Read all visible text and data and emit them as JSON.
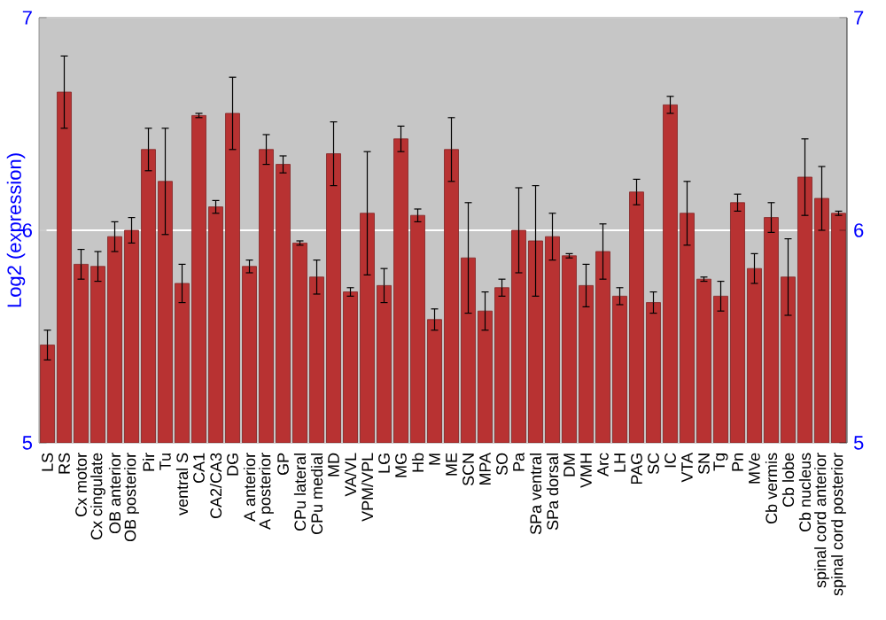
{
  "chart_data": {
    "type": "bar",
    "ylabel": "Log2 (expression)",
    "categories": [
      "LS",
      "RS",
      "Cx motor",
      "Cx cingulate",
      "OB anterior",
      "OB posterior",
      "Pir",
      "Tu",
      "ventral S",
      "CA1",
      "CA2/CA3",
      "DG",
      "A anterior",
      "A posterior",
      "GP",
      "CPu lateral",
      "CPu medial",
      "MD",
      "VA/VL",
      "VPM/VPL",
      "LG",
      "MG",
      "Hb",
      "M",
      "ME",
      "SCN",
      "MPA",
      "SO",
      "Pa",
      "SPa ventral",
      "SPa dorsal",
      "DM",
      "VMH",
      "Arc",
      "LH",
      "PAG",
      "SC",
      "IC",
      "VTA",
      "SN",
      "Tg",
      "Pn",
      "MVe",
      "Cb vermis",
      "Cb lobe",
      "Cb nucleus",
      "spinal cord anterior",
      "spinal cord posterior"
    ],
    "values": [
      5.46,
      6.65,
      5.84,
      5.83,
      5.97,
      6.0,
      6.38,
      6.23,
      5.75,
      6.54,
      6.11,
      6.55,
      5.83,
      6.38,
      6.31,
      5.94,
      5.78,
      6.36,
      5.71,
      6.08,
      5.74,
      6.43,
      6.07,
      5.58,
      6.38,
      5.87,
      5.62,
      5.73,
      6.0,
      5.95,
      5.97,
      5.88,
      5.74,
      5.9,
      5.69,
      6.18,
      5.66,
      6.59,
      6.08,
      5.77,
      5.69,
      6.13,
      5.82,
      6.06,
      5.78,
      6.25,
      6.15,
      6.08
    ],
    "errors": [
      0.07,
      0.17,
      0.07,
      0.07,
      0.07,
      0.06,
      0.1,
      0.25,
      0.09,
      0.01,
      0.03,
      0.17,
      0.03,
      0.07,
      0.04,
      0.01,
      0.08,
      0.15,
      0.02,
      0.29,
      0.08,
      0.06,
      0.03,
      0.05,
      0.15,
      0.26,
      0.09,
      0.04,
      0.2,
      0.26,
      0.11,
      0.01,
      0.1,
      0.13,
      0.04,
      0.06,
      0.05,
      0.04,
      0.15,
      0.01,
      0.07,
      0.04,
      0.07,
      0.07,
      0.18,
      0.18,
      0.15,
      0.01
    ],
    "color": "#b83232",
    "ylim": [
      5,
      7
    ],
    "yticks": [
      5,
      6,
      7
    ],
    "y2lim": [
      5,
      7
    ],
    "y2ticks": [
      5,
      6,
      7
    ],
    "grid": "y"
  }
}
